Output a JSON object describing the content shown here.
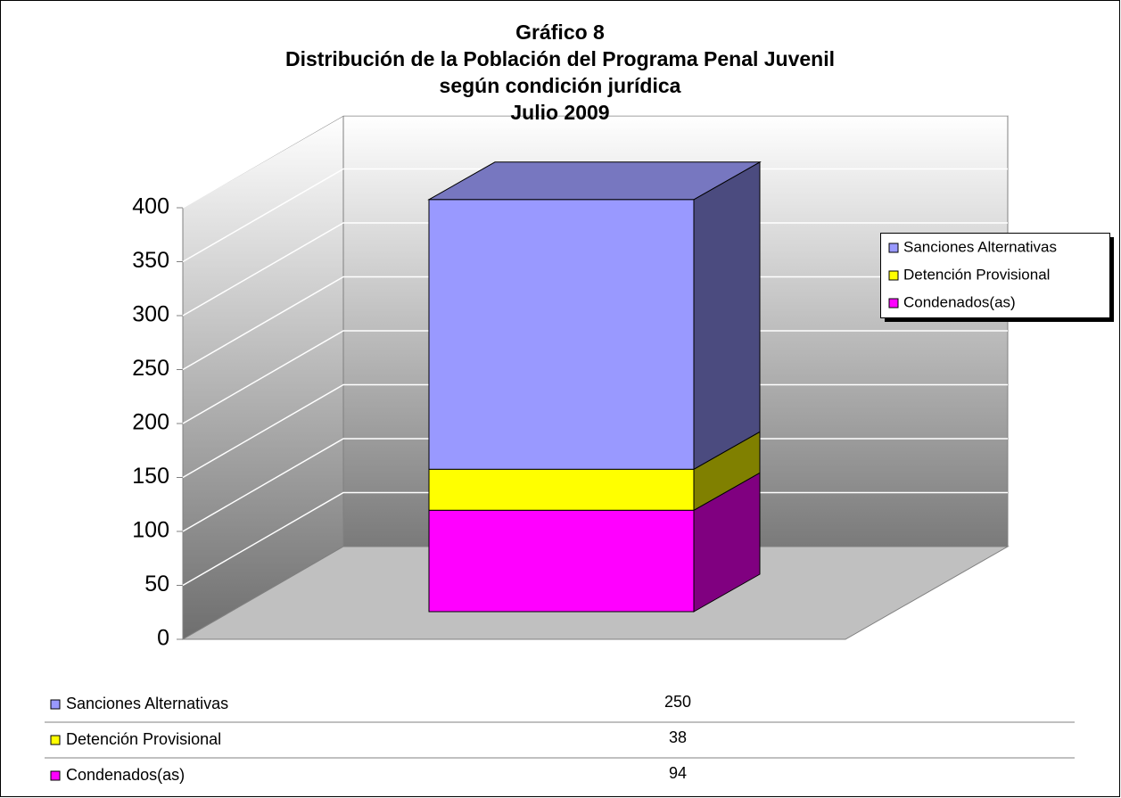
{
  "chart_data": {
    "type": "bar3d_stacked",
    "title": [
      "Gráfico 8",
      "Distribución de la Población del Programa Penal Juvenil",
      "según condición jurídica",
      "Julio 2009"
    ],
    "series": [
      {
        "name": "Sanciones Alternativas",
        "color": "#9999ff",
        "side_color": "#4b4b7f",
        "top_color": "#7777c0",
        "values": [
          250
        ]
      },
      {
        "name": "Detención Provisional",
        "color": "#ffff00",
        "side_color": "#808000",
        "top_color": "#c0c000",
        "values": [
          38
        ]
      },
      {
        "name": "Condenados(as)",
        "color": "#ff00ff",
        "side_color": "#800080",
        "top_color": "#c000c0",
        "values": [
          94
        ]
      }
    ],
    "ylim": [
      0,
      400
    ],
    "yticks": [
      0,
      50,
      100,
      150,
      200,
      250,
      300,
      350,
      400
    ],
    "grid": true,
    "legend": "right"
  }
}
